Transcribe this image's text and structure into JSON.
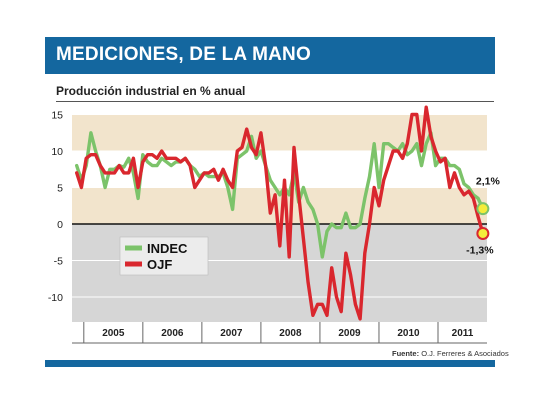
{
  "header": {
    "title": "MEDICIONES, DE LA MANO"
  },
  "source": {
    "label": "Fuente:",
    "text": "O.J. Ferreres & Asociados"
  },
  "colors": {
    "header_bar": "#14679f",
    "band": "#f2e4cc",
    "negative_bg": "#d6d6d6",
    "indec": "#7cc36a",
    "ojf": "#d9272e"
  },
  "chart_data": {
    "type": "line",
    "title": "Producción industrial en % anual",
    "ylim": [
      -12.5,
      15
    ],
    "yticks": [
      "15",
      "10",
      "5",
      "0",
      "-5",
      "-10"
    ],
    "x_tick_labels": [
      "2005",
      "2006",
      "2007",
      "2008",
      "2009",
      "2010",
      "2011"
    ],
    "x_range": [
      2004.8,
      2011.83
    ],
    "legend": {
      "placement": "left-center",
      "entries": [
        "INDEC",
        "OJF"
      ]
    },
    "series": [
      {
        "name": "INDEC",
        "color": "#7cc36a",
        "points": [
          [
            2004.88,
            8
          ],
          [
            2004.96,
            6
          ],
          [
            2005.04,
            8
          ],
          [
            2005.12,
            12.5
          ],
          [
            2005.2,
            10
          ],
          [
            2005.28,
            8
          ],
          [
            2005.36,
            5
          ],
          [
            2005.44,
            7.5
          ],
          [
            2005.52,
            7.5
          ],
          [
            2005.6,
            8
          ],
          [
            2005.68,
            7.8
          ],
          [
            2005.76,
            9
          ],
          [
            2005.84,
            7
          ],
          [
            2005.92,
            3.5
          ],
          [
            2006.0,
            9.5
          ],
          [
            2006.08,
            8.5
          ],
          [
            2006.16,
            8
          ],
          [
            2006.24,
            8
          ],
          [
            2006.32,
            9
          ],
          [
            2006.4,
            8.5
          ],
          [
            2006.48,
            8
          ],
          [
            2006.56,
            8.5
          ],
          [
            2006.64,
            8.5
          ],
          [
            2006.72,
            9
          ],
          [
            2006.8,
            8
          ],
          [
            2006.88,
            7.5
          ],
          [
            2006.96,
            6.5
          ],
          [
            2007.04,
            7
          ],
          [
            2007.12,
            6.5
          ],
          [
            2007.2,
            6.5
          ],
          [
            2007.28,
            6.5
          ],
          [
            2007.36,
            7
          ],
          [
            2007.44,
            5
          ],
          [
            2007.52,
            2
          ],
          [
            2007.6,
            9
          ],
          [
            2007.68,
            9.5
          ],
          [
            2007.76,
            10
          ],
          [
            2007.84,
            12
          ],
          [
            2007.92,
            9
          ],
          [
            2008.0,
            10
          ],
          [
            2008.08,
            8
          ],
          [
            2008.16,
            6
          ],
          [
            2008.24,
            5
          ],
          [
            2008.32,
            4
          ],
          [
            2008.4,
            5
          ],
          [
            2008.48,
            4
          ],
          [
            2008.56,
            7
          ],
          [
            2008.64,
            3
          ],
          [
            2008.72,
            5
          ],
          [
            2008.8,
            3
          ],
          [
            2008.88,
            2
          ],
          [
            2008.96,
            0
          ],
          [
            2009.04,
            -4.5
          ],
          [
            2009.12,
            -1
          ],
          [
            2009.2,
            0
          ],
          [
            2009.28,
            -0.5
          ],
          [
            2009.36,
            -0.5
          ],
          [
            2009.44,
            1.5
          ],
          [
            2009.52,
            -0.5
          ],
          [
            2009.6,
            -0.5
          ],
          [
            2009.68,
            0
          ],
          [
            2009.76,
            3.5
          ],
          [
            2009.84,
            6.5
          ],
          [
            2009.92,
            11
          ],
          [
            2010.0,
            5
          ],
          [
            2010.08,
            11
          ],
          [
            2010.16,
            11
          ],
          [
            2010.24,
            10.5
          ],
          [
            2010.32,
            10
          ],
          [
            2010.4,
            11
          ],
          [
            2010.48,
            9.5
          ],
          [
            2010.56,
            10
          ],
          [
            2010.64,
            11
          ],
          [
            2010.72,
            8
          ],
          [
            2010.8,
            11
          ],
          [
            2010.88,
            12.5
          ],
          [
            2010.96,
            8
          ],
          [
            2011.04,
            9
          ],
          [
            2011.12,
            9
          ],
          [
            2011.2,
            8
          ],
          [
            2011.28,
            8
          ],
          [
            2011.36,
            7.5
          ],
          [
            2011.44,
            5.5
          ],
          [
            2011.52,
            5
          ],
          [
            2011.6,
            4
          ],
          [
            2011.68,
            3.5
          ],
          [
            2011.76,
            2.1
          ]
        ]
      },
      {
        "name": "OJF",
        "color": "#d9272e",
        "points": [
          [
            2004.88,
            7
          ],
          [
            2004.96,
            5
          ],
          [
            2005.04,
            9
          ],
          [
            2005.12,
            9.5
          ],
          [
            2005.2,
            9.5
          ],
          [
            2005.28,
            8
          ],
          [
            2005.36,
            7
          ],
          [
            2005.44,
            7
          ],
          [
            2005.52,
            7
          ],
          [
            2005.6,
            8
          ],
          [
            2005.68,
            7
          ],
          [
            2005.76,
            7
          ],
          [
            2005.84,
            9
          ],
          [
            2005.92,
            5
          ],
          [
            2006.0,
            8.5
          ],
          [
            2006.08,
            9.5
          ],
          [
            2006.16,
            9.5
          ],
          [
            2006.24,
            9
          ],
          [
            2006.32,
            10
          ],
          [
            2006.4,
            9
          ],
          [
            2006.48,
            9
          ],
          [
            2006.56,
            9
          ],
          [
            2006.64,
            8.5
          ],
          [
            2006.72,
            9
          ],
          [
            2006.8,
            8
          ],
          [
            2006.88,
            5
          ],
          [
            2006.96,
            6
          ],
          [
            2007.04,
            7
          ],
          [
            2007.12,
            7
          ],
          [
            2007.2,
            7.5
          ],
          [
            2007.28,
            6
          ],
          [
            2007.36,
            7.5
          ],
          [
            2007.44,
            6
          ],
          [
            2007.52,
            5
          ],
          [
            2007.6,
            10
          ],
          [
            2007.68,
            10.5
          ],
          [
            2007.76,
            13
          ],
          [
            2007.84,
            10.5
          ],
          [
            2007.92,
            9.5
          ],
          [
            2008.0,
            12.5
          ],
          [
            2008.08,
            8
          ],
          [
            2008.16,
            1.5
          ],
          [
            2008.24,
            4
          ],
          [
            2008.32,
            -3
          ],
          [
            2008.4,
            6
          ],
          [
            2008.48,
            -4.5
          ],
          [
            2008.56,
            10.5
          ],
          [
            2008.64,
            4
          ],
          [
            2008.72,
            -2
          ],
          [
            2008.8,
            -8
          ],
          [
            2008.88,
            -12.5
          ],
          [
            2008.96,
            -11
          ],
          [
            2009.04,
            -11
          ],
          [
            2009.12,
            -12.5
          ],
          [
            2009.2,
            -6
          ],
          [
            2009.28,
            -10
          ],
          [
            2009.36,
            -12
          ],
          [
            2009.44,
            -4
          ],
          [
            2009.52,
            -7
          ],
          [
            2009.6,
            -11
          ],
          [
            2009.68,
            -13
          ],
          [
            2009.76,
            -4
          ],
          [
            2009.84,
            0
          ],
          [
            2009.92,
            5
          ],
          [
            2010.0,
            2.5
          ],
          [
            2010.08,
            6
          ],
          [
            2010.16,
            8
          ],
          [
            2010.24,
            10
          ],
          [
            2010.32,
            10
          ],
          [
            2010.4,
            9
          ],
          [
            2010.48,
            11
          ],
          [
            2010.56,
            15
          ],
          [
            2010.64,
            15
          ],
          [
            2010.72,
            10
          ],
          [
            2010.8,
            16
          ],
          [
            2010.88,
            12
          ],
          [
            2010.96,
            10
          ],
          [
            2011.04,
            8.5
          ],
          [
            2011.12,
            9
          ],
          [
            2011.2,
            5
          ],
          [
            2011.28,
            7
          ],
          [
            2011.36,
            5
          ],
          [
            2011.44,
            4
          ],
          [
            2011.52,
            4.5
          ],
          [
            2011.6,
            3.5
          ],
          [
            2011.68,
            1
          ],
          [
            2011.76,
            -1.3
          ]
        ]
      }
    ],
    "annotations": [
      {
        "series": "INDEC",
        "x": 2011.76,
        "y": 2.1,
        "text": "2,1%"
      },
      {
        "series": "OJF",
        "x": 2011.76,
        "y": -1.3,
        "text": "-1,3%"
      }
    ]
  }
}
